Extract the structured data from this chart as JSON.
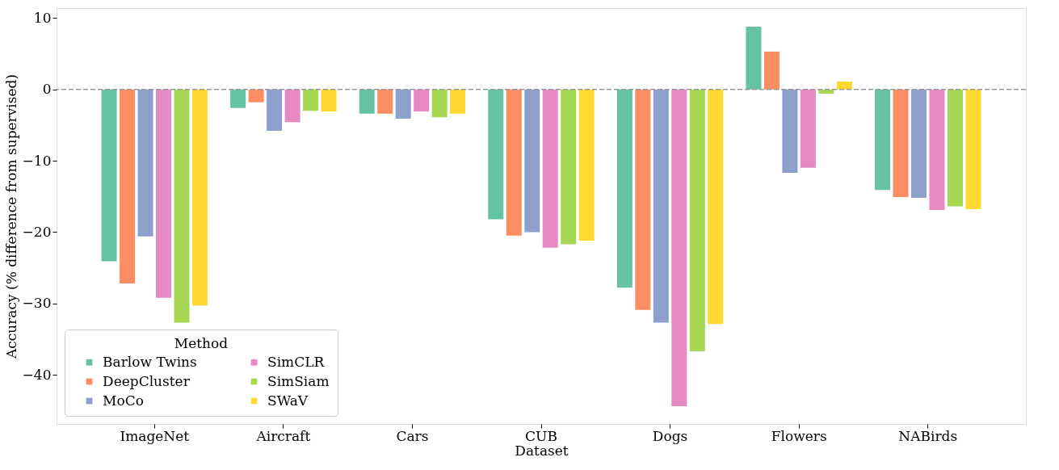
{
  "chart_data": {
    "type": "bar",
    "xlabel": "Dataset",
    "ylabel": "Accuracy (% difference from supervised)",
    "legend_title": "Method",
    "categories": [
      "ImageNet",
      "Aircraft",
      "Cars",
      "CUB",
      "Dogs",
      "Flowers",
      "NABirds"
    ],
    "series": [
      {
        "name": "Barlow Twins",
        "color": "#66c2a5",
        "values": [
          -24.1,
          -2.6,
          -3.4,
          -18.2,
          -27.8,
          8.8,
          -14.1
        ]
      },
      {
        "name": "DeepCluster",
        "color": "#fc8d62",
        "values": [
          -27.2,
          -1.8,
          -3.4,
          -20.5,
          -30.9,
          5.3,
          -15.1
        ]
      },
      {
        "name": "MoCo",
        "color": "#8da0cb",
        "values": [
          -20.6,
          -5.8,
          -4.1,
          -20.0,
          -32.7,
          -11.7,
          -15.2
        ]
      },
      {
        "name": "SimCLR",
        "color": "#e78ac3",
        "values": [
          -29.2,
          -4.6,
          -3.1,
          -22.2,
          -44.4,
          -11.0,
          -16.9
        ]
      },
      {
        "name": "SimSiam",
        "color": "#a6d854",
        "values": [
          -32.7,
          -3.0,
          -3.9,
          -21.7,
          -36.7,
          -0.6,
          -16.4
        ]
      },
      {
        "name": "SWaV",
        "color": "#ffd92f",
        "values": [
          -30.3,
          -3.1,
          -3.4,
          -21.2,
          -32.9,
          1.1,
          -16.8
        ]
      }
    ],
    "ylim": [
      -46.9,
      11.4
    ],
    "yticks": [
      -40,
      -30,
      -20,
      -10,
      0,
      10
    ],
    "ref_lines": [
      {
        "axis": "y",
        "value": 0,
        "color": "#999999",
        "line_style": "dashed"
      }
    ],
    "grid": false,
    "legend": "bottom left"
  }
}
